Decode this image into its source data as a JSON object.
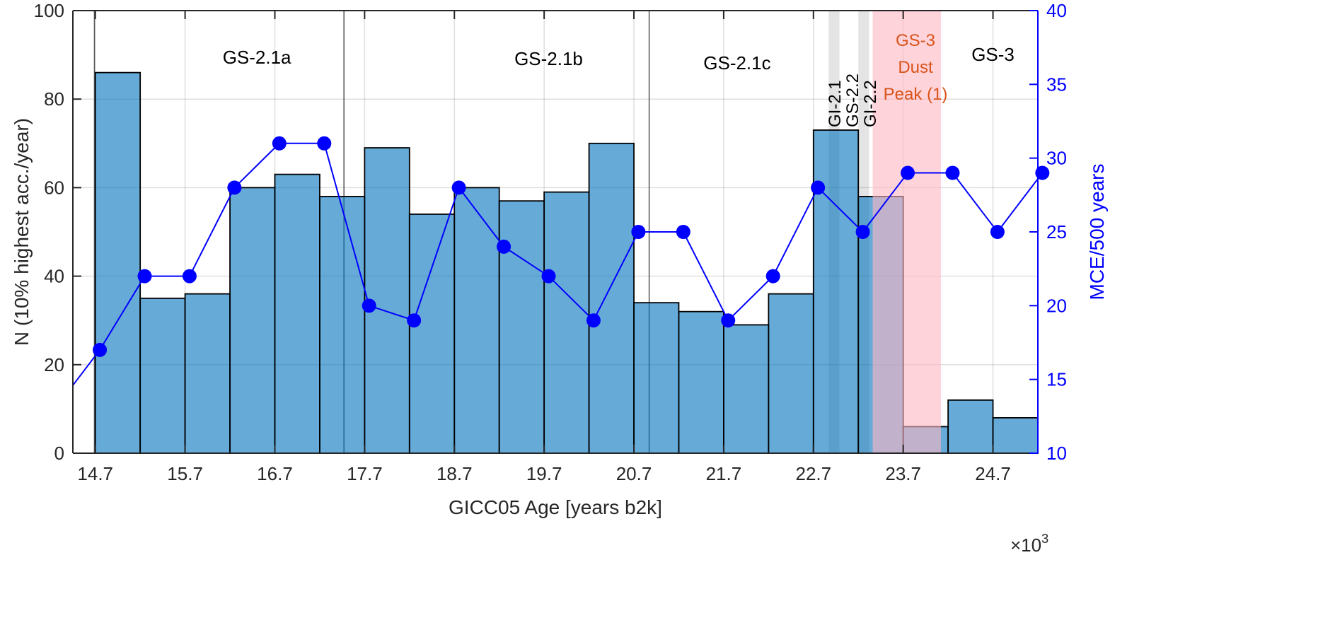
{
  "chart_data": {
    "type": "bar+line",
    "xlabel": "GICC05 Age [years b2k]",
    "x_multiplier": "×10",
    "x_multiplier_exp": "3",
    "ylabel_left": "N (10% highest acc./year)",
    "ylabel_right": "MCE/500 years",
    "xlim": [
      14.45,
      25.2
    ],
    "ylim_left": [
      0,
      100
    ],
    "ylim_right": [
      10,
      40
    ],
    "xticks": [
      "14.7",
      "15.7",
      "16.7",
      "17.7",
      "18.7",
      "19.7",
      "20.7",
      "21.7",
      "22.7",
      "23.7",
      "24.7"
    ],
    "yticks_left": [
      "0",
      "20",
      "40",
      "60",
      "80",
      "100"
    ],
    "yticks_right": [
      "10",
      "15",
      "20",
      "25",
      "30",
      "35",
      "40"
    ],
    "grid": true,
    "bars": {
      "name": "N (10% highest acc./year)",
      "bin_start": 14.7,
      "bin_width": 0.5,
      "values": [
        86,
        35,
        36,
        60,
        63,
        58,
        69,
        54,
        60,
        57,
        59,
        70,
        34,
        32,
        29,
        36,
        73,
        58,
        6,
        12,
        8
      ],
      "color": "#0072bd"
    },
    "line": {
      "name": "MCE/500 years",
      "x": [
        14.25,
        14.75,
        15.25,
        15.75,
        16.25,
        16.75,
        17.25,
        17.75,
        18.25,
        18.75,
        19.25,
        19.75,
        20.25,
        20.75,
        21.25,
        21.75,
        22.25,
        22.75,
        23.25,
        23.75,
        24.25,
        24.75,
        25.25
      ],
      "values": [
        13,
        17,
        22,
        22,
        28,
        31,
        31,
        20,
        19,
        28,
        24,
        22,
        19,
        25,
        25,
        19,
        22,
        28,
        25,
        29,
        29,
        25,
        29
      ],
      "color": "#0000ff"
    },
    "stage_boundaries": [
      14.69,
      17.47,
      20.87
    ],
    "stage_labels": [
      {
        "text": "GS-2.1a",
        "x": 16.5
      },
      {
        "text": "GS-2.1b",
        "x": 19.75
      },
      {
        "text": "GS-2.1c",
        "x": 21.85
      },
      {
        "text": "GS-3",
        "x": 24.7
      }
    ],
    "interstadial_bands": [
      {
        "range": [
          22.87,
          22.99
        ]
      },
      {
        "range": [
          23.2,
          23.32
        ]
      }
    ],
    "interstadial_labels": [
      "GI-2.1",
      "GS-2.2",
      "GI-2.2"
    ],
    "dust_peak": {
      "range": [
        23.36,
        24.12
      ],
      "lines": [
        "GS-3",
        "Dust",
        "Peak (1)"
      ],
      "color": "#ffb6c1",
      "text_color": "#d95319"
    }
  }
}
